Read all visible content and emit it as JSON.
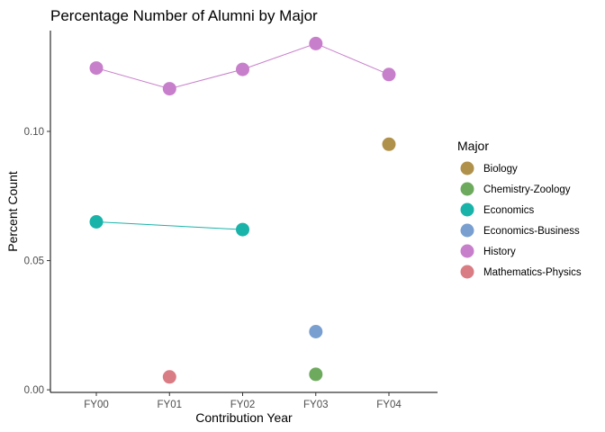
{
  "chart_data": {
    "type": "scatter",
    "title": "Percentage Number of Alumni by Major",
    "xlabel": "Contribution Year",
    "ylabel": "Percent Count",
    "categories": [
      "FY00",
      "FY01",
      "FY02",
      "FY03",
      "FY04"
    ],
    "ylim": [
      -0.001,
      0.139
    ],
    "yticks": [
      0.0,
      0.05,
      0.1
    ],
    "ytick_labels": [
      "0.00",
      "0.05",
      "0.10"
    ],
    "grid": false,
    "legend": {
      "title": "Major",
      "placement": "right"
    },
    "series": [
      {
        "name": "Biology",
        "color": "#B0914B",
        "lines": false,
        "values": [
          null,
          null,
          null,
          null,
          0.095
        ]
      },
      {
        "name": "Chemistry-Zoology",
        "color": "#6EAA5E",
        "lines": false,
        "values": [
          null,
          null,
          null,
          0.006,
          null
        ]
      },
      {
        "name": "Economics",
        "color": "#19B3AA",
        "lines": true,
        "values": [
          0.065,
          null,
          0.062,
          null,
          null
        ]
      },
      {
        "name": "Economics-Business",
        "color": "#789FD0",
        "lines": false,
        "values": [
          null,
          null,
          null,
          0.0225,
          null
        ]
      },
      {
        "name": "History",
        "color": "#C87FCB",
        "lines": true,
        "values": [
          0.1245,
          0.1165,
          0.124,
          0.134,
          0.122
        ]
      },
      {
        "name": "Mathematics-Physics",
        "color": "#D97C84",
        "lines": false,
        "values": [
          null,
          0.005,
          null,
          null,
          null
        ]
      }
    ]
  }
}
